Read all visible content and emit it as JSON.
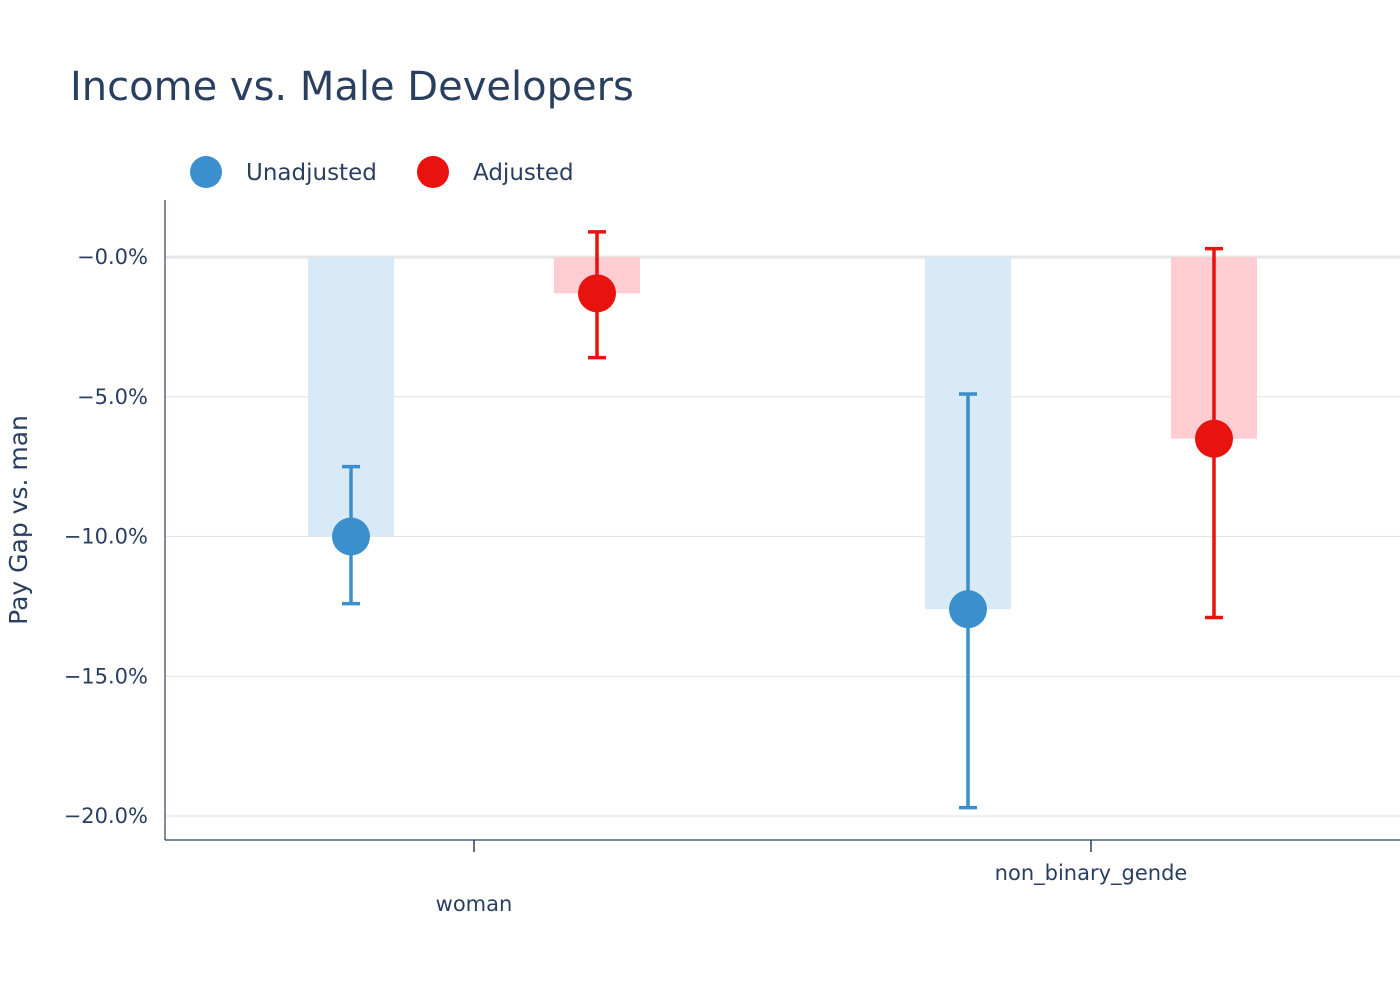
{
  "chart_data": {
    "type": "bar",
    "title": "Income vs. Male Developers",
    "ylabel": "Pay Gap vs. man",
    "xlabel": "",
    "categories": [
      "woman",
      "non_binary_gende"
    ],
    "ylim": [
      -0.2,
      0.0
    ],
    "yticks": [
      0.0,
      -0.05,
      -0.1,
      -0.15,
      -0.2
    ],
    "ytick_labels": [
      "−0.0%",
      "−5.0%",
      "−10.0%",
      "−15.0%",
      "−20.0%"
    ],
    "grid": true,
    "legend_position": "top-left",
    "series": [
      {
        "name": "Unadjusted",
        "color": "#3a8fcc",
        "bar_color": "#d8e9f7",
        "values": [
          -0.1,
          -0.126
        ],
        "error_low": [
          -0.124,
          -0.197
        ],
        "error_high": [
          -0.075,
          -0.049
        ]
      },
      {
        "name": "Adjusted",
        "color": "#e8120e",
        "bar_color": "#ffcdd2",
        "values": [
          -0.013,
          -0.065
        ],
        "error_low": [
          -0.036,
          -0.129
        ],
        "error_high": [
          0.009,
          0.003
        ]
      }
    ]
  }
}
